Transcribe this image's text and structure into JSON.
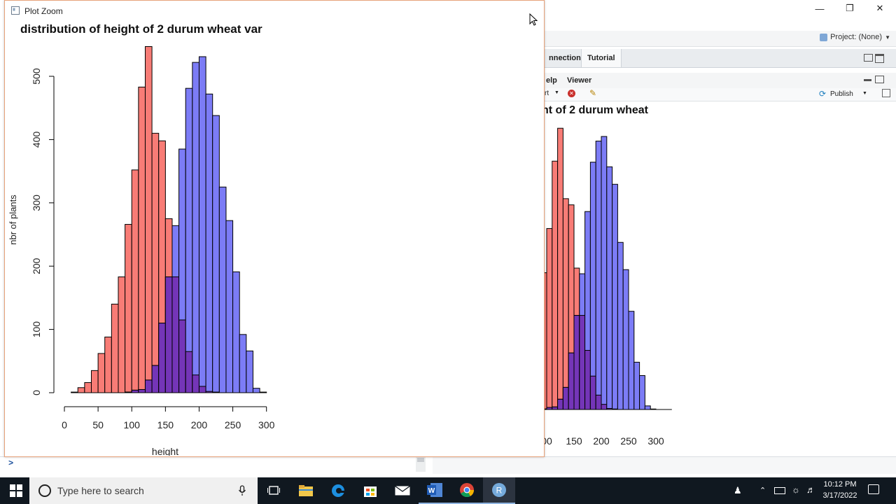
{
  "rstudio": {
    "project_label": "Project: (None)",
    "tabs": [
      "nnections",
      "Tutorial"
    ],
    "subtabs": [
      "elp",
      "Viewer"
    ],
    "toolbar": {
      "export_fragment": "rt",
      "publish_label": "Publish"
    },
    "console_prompt": ">"
  },
  "zoom_window": {
    "title": "Plot Zoom"
  },
  "main_plot": {
    "title": "distribution of height of 2 durum wheat var",
    "xlabel": "height",
    "ylabel": "nbr of plants",
    "x_ticks": [
      "0",
      "50",
      "100",
      "150",
      "200",
      "250",
      "300"
    ],
    "y_ticks": [
      "0",
      "100",
      "200",
      "300",
      "400",
      "500"
    ]
  },
  "background_plot": {
    "title": "nt of 2 durum wheat",
    "xlabel": "height",
    "x_ticks": [
      "00",
      "150",
      "200",
      "250",
      "300"
    ]
  },
  "taskbar": {
    "search_placeholder": "Type here to search",
    "time": "10:12 PM",
    "date": "3/17/2022"
  },
  "colors": {
    "variety1_fill": "#f87c76",
    "variety2_fill": "#7c7cf6",
    "overlap_fill": "#7435b8",
    "taskbar": "#101820"
  },
  "chart_data": {
    "type": "bar",
    "title": "distribution of height of 2 durum wheat var",
    "xlabel": "height",
    "ylabel": "nbr of plants",
    "xlim": [
      0,
      300
    ],
    "ylim": [
      0,
      550
    ],
    "bin_width": 10,
    "bin_starts": [
      10,
      20,
      30,
      40,
      50,
      60,
      70,
      80,
      90,
      100,
      110,
      120,
      130,
      140,
      150,
      160,
      170,
      180,
      190,
      200,
      210,
      220,
      230,
      240,
      250,
      260,
      270,
      280,
      290
    ],
    "series": [
      {
        "values": [
          1,
          8,
          16,
          35,
          62,
          88,
          140,
          183,
          266,
          352,
          483,
          547,
          410,
          398,
          275,
          183,
          115,
          65,
          28,
          10,
          2,
          1,
          0,
          0,
          0,
          0,
          0,
          0,
          0
        ]
      },
      {
        "values": [
          0,
          0,
          0,
          0,
          0,
          0,
          0,
          0,
          1,
          4,
          5,
          20,
          43,
          110,
          183,
          264,
          385,
          481,
          522,
          531,
          472,
          438,
          325,
          272,
          191,
          92,
          66,
          7,
          1
        ]
      }
    ]
  }
}
